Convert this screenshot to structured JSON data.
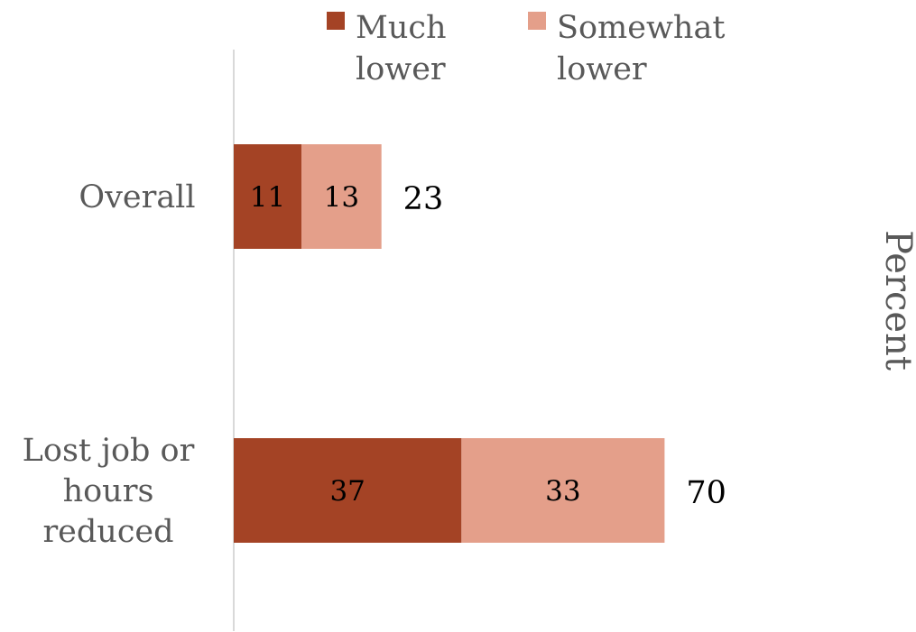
{
  "chart_data": {
    "type": "bar",
    "orientation": "horizontal",
    "stacked": true,
    "categories": [
      "Overall",
      "Lost job or hours reduced"
    ],
    "category_lines": [
      [
        "Overall"
      ],
      [
        "Lost job or",
        "hours",
        "reduced"
      ]
    ],
    "series": [
      {
        "name": "Much lower",
        "legend_lines": [
          "Much",
          "lower"
        ],
        "values": [
          11,
          37
        ],
        "color": "#A44325"
      },
      {
        "name": "Somewhat lower",
        "legend_lines": [
          "Somewhat",
          "lower"
        ],
        "values": [
          13,
          33
        ],
        "color": "#E49F8A"
      }
    ],
    "totals": [
      23,
      70
    ],
    "ylabel": "Percent",
    "xlim": [
      0,
      70
    ],
    "legend_position": "top",
    "grid": false
  },
  "colors": {
    "text_gray": "#595959",
    "text_black": "#000000",
    "axis_line": "#d9d9d9"
  }
}
